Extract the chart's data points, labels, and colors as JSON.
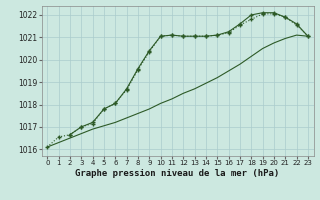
{
  "title": "Graphe pression niveau de la mer (hPa)",
  "background_color": "#cce8e0",
  "grid_color": "#aacccc",
  "line_color": "#2d5a27",
  "xlim": [
    -0.5,
    23.5
  ],
  "ylim": [
    1015.7,
    1022.4
  ],
  "yticks": [
    1016,
    1017,
    1018,
    1019,
    1020,
    1021,
    1022
  ],
  "xticks": [
    0,
    1,
    2,
    3,
    4,
    5,
    6,
    7,
    8,
    9,
    10,
    11,
    12,
    13,
    14,
    15,
    16,
    17,
    18,
    19,
    20,
    21,
    22,
    23
  ],
  "series1_x": [
    0,
    1,
    2,
    3,
    4,
    5,
    6,
    7,
    8,
    9,
    10,
    11,
    12,
    13,
    14,
    15,
    16,
    17,
    18,
    19,
    20,
    21,
    22,
    23
  ],
  "series1_y": [
    1016.1,
    1016.55,
    1016.65,
    1017.0,
    1017.15,
    1017.8,
    1018.05,
    1018.65,
    1019.55,
    1020.35,
    1021.05,
    1021.1,
    1021.05,
    1021.05,
    1021.05,
    1021.1,
    1021.2,
    1021.55,
    1021.8,
    1022.05,
    1022.05,
    1021.9,
    1021.55,
    1021.05
  ],
  "series2_x": [
    0,
    1,
    2,
    3,
    4,
    5,
    6,
    7,
    8,
    9,
    10,
    11,
    12,
    13,
    14,
    15,
    16,
    17,
    18,
    19,
    20,
    21,
    22,
    23
  ],
  "series2_y": [
    1016.1,
    1016.3,
    1016.5,
    1016.7,
    1016.9,
    1017.05,
    1017.2,
    1017.4,
    1017.6,
    1017.8,
    1018.05,
    1018.25,
    1018.5,
    1018.7,
    1018.95,
    1019.2,
    1019.5,
    1019.8,
    1020.15,
    1020.5,
    1020.75,
    1020.95,
    1021.1,
    1021.05
  ],
  "series3_x": [
    2,
    3,
    4,
    5,
    6,
    7,
    8,
    9,
    10,
    11,
    12,
    13,
    14,
    15,
    16,
    17,
    18,
    19,
    20,
    21,
    22,
    23
  ],
  "series3_y": [
    1016.65,
    1017.0,
    1017.2,
    1017.8,
    1018.05,
    1018.7,
    1019.6,
    1020.4,
    1021.05,
    1021.1,
    1021.05,
    1021.05,
    1021.05,
    1021.1,
    1021.25,
    1021.6,
    1022.0,
    1022.1,
    1022.1,
    1021.9,
    1021.6,
    1021.05
  ]
}
